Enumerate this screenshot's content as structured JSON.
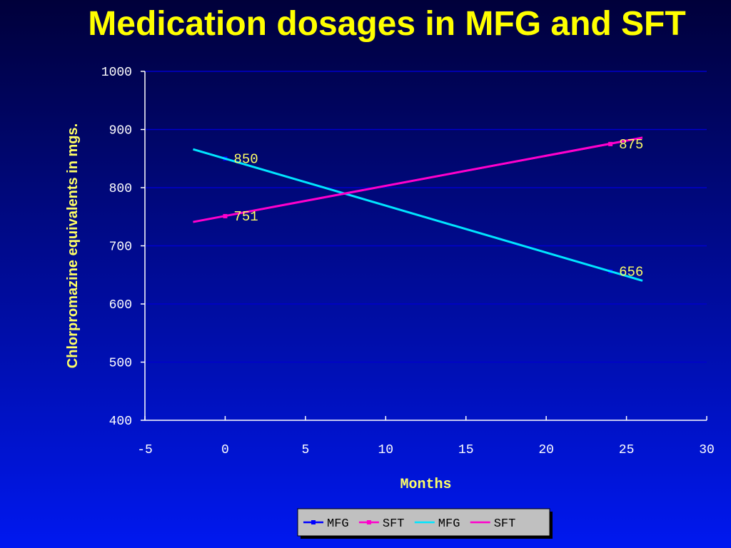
{
  "slide": {
    "title": "Medication dosages in MFG and SFT"
  },
  "chart_data": {
    "type": "line",
    "title": "Medication dosages in MFG and SFT",
    "xlabel": "Months",
    "ylabel": "Chlorpromazine equivalents in mgs.",
    "xlim": [
      -5,
      30
    ],
    "ylim": [
      400,
      1000
    ],
    "xticks": [
      -5,
      0,
      5,
      10,
      15,
      20,
      25,
      30
    ],
    "yticks": [
      400,
      500,
      600,
      700,
      800,
      900,
      1000
    ],
    "grid": "horizontal",
    "legend_position": "bottom",
    "series": [
      {
        "name": "MFG",
        "kind": "data",
        "color": "#0000ff",
        "x": [
          0,
          24
        ],
        "y": [
          850,
          656
        ],
        "labels": [
          "850",
          "656"
        ]
      },
      {
        "name": "SFT",
        "kind": "data",
        "color": "#ff00cc",
        "x": [
          0,
          24
        ],
        "y": [
          751,
          875
        ],
        "labels": [
          "751",
          "875"
        ]
      },
      {
        "name": "MFG",
        "kind": "trend",
        "color": "#00e5ff",
        "x": [
          -2,
          26
        ],
        "y": [
          866,
          640
        ]
      },
      {
        "name": "SFT",
        "kind": "trend",
        "color": "#ff00cc",
        "x": [
          -2,
          26
        ],
        "y": [
          741,
          886
        ]
      }
    ]
  }
}
